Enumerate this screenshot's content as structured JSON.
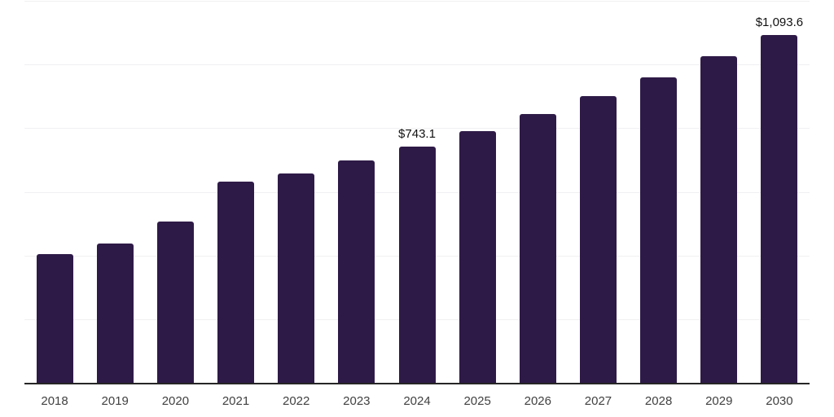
{
  "chart_data": {
    "type": "bar",
    "title": "",
    "xlabel": "",
    "ylabel": "",
    "categories": [
      "2018",
      "2019",
      "2020",
      "2021",
      "2022",
      "2023",
      "2024",
      "2025",
      "2026",
      "2027",
      "2028",
      "2029",
      "2030"
    ],
    "values": [
      404,
      438,
      506,
      631,
      658,
      699,
      743.1,
      791,
      844,
      901,
      960,
      1027,
      1093.6
    ],
    "value_labels": [
      "",
      "",
      "",
      "",
      "",
      "",
      "$743.1",
      "",
      "",
      "",
      "",
      "",
      "$1,093.6"
    ],
    "ylim": [
      0,
      1200
    ],
    "grid": true,
    "gridline_step": 200,
    "legend_position": "none",
    "colors": {
      "bar": "#2e1a47",
      "axis_line": "#262626",
      "gridline": "#f0f0f2",
      "tick_label": "#414141",
      "value_label": "#111111",
      "background": "#ffffff"
    }
  }
}
